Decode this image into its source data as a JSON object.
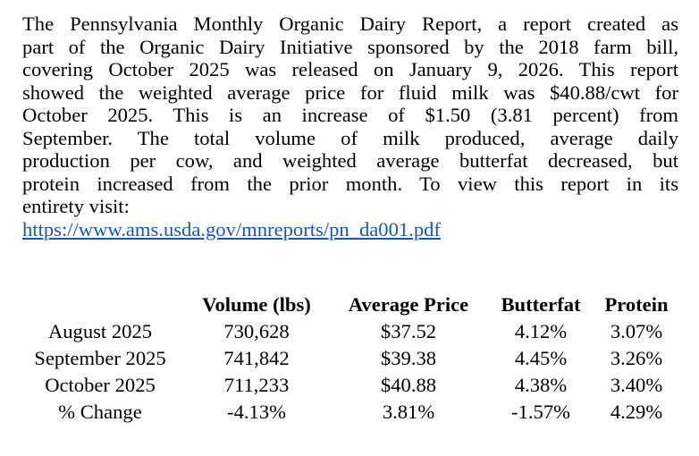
{
  "report": {
    "line1": "The Pennsylvania Monthly Organic Dairy Report, a report created as",
    "line2": "part of the Organic Dairy Initiative sponsored by the 2018 farm bill,",
    "line3": "covering October 2025 was released on January 9, 2026. This report",
    "line4": "showed the weighted average price for fluid milk was $40.88/cwt for",
    "line5": "October 2025. This is an increase of $1.50 (3.81 percent) from",
    "line6": "September. The total volume of milk produced, average daily",
    "line7": "production per cow, and weighted average butterfat decreased, but",
    "line8": "protein increased from the prior month. To view this report in its",
    "line9": "entirety visit:",
    "link": "https://www.ams.usda.gov/mnreports/pn_da001.pdf"
  },
  "table": {
    "headers": [
      "",
      "Volume (lbs)",
      "Average Price",
      "Butterfat",
      "Protein"
    ],
    "rows": [
      [
        "August 2025",
        "730,628",
        "$37.52",
        "4.12%",
        "3.07%"
      ],
      [
        "September 2025",
        "741,842",
        "$39.38",
        "4.45%",
        "3.26%"
      ],
      [
        "October 2025",
        "711,233",
        "$40.88",
        "4.38%",
        "3.40%"
      ],
      [
        "% Change",
        "-4.13%",
        "3.81%",
        "-1.57%",
        "4.29%"
      ]
    ]
  },
  "colors": {
    "link": "#1155cc",
    "text": "#000000",
    "background": "#ffffff"
  }
}
